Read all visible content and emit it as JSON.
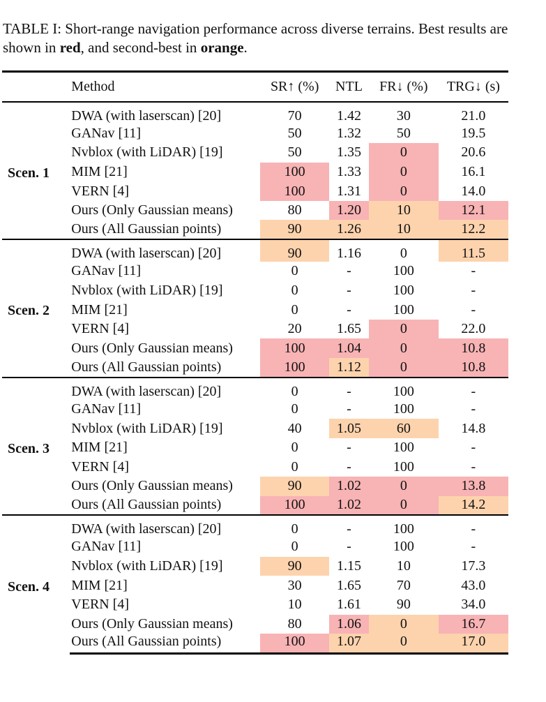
{
  "caption": {
    "prefix": "TABLE I: Short-range navigation performance across diverse terrains. Best results are shown in ",
    "best_word": "red",
    "middle": ", and second-best in ",
    "second_word": "orange",
    "suffix": "."
  },
  "colors": {
    "best": "#f8b3b5",
    "second": "#fdd3ad"
  },
  "headers": {
    "scenario": "",
    "method": "Method",
    "sr": "SR↑ (%)",
    "ntl": "NTL",
    "fr": "FR↓ (%)",
    "trg": "TRG↓ (s)"
  },
  "groups": [
    {
      "label": "Scen. 1",
      "rows": [
        {
          "method": "DWA (with laserscan) [20]",
          "sr": "70",
          "ntl": "1.42",
          "fr": "30",
          "trg": "21.0"
        },
        {
          "method": "GANav [11]",
          "sr": "50",
          "ntl": "1.32",
          "fr": "50",
          "trg": "19.5"
        },
        {
          "method": "Nvblox (with LiDAR) [19]",
          "sr": "50",
          "ntl": "1.35",
          "fr": "0",
          "trg": "20.6",
          "hl": {
            "fr": "best"
          }
        },
        {
          "method": "MIM [21]",
          "sr": "100",
          "ntl": "1.33",
          "fr": "0",
          "trg": "16.1",
          "hl": {
            "sr": "best",
            "fr": "best"
          }
        },
        {
          "method": "VERN [4]",
          "sr": "100",
          "ntl": "1.31",
          "fr": "0",
          "trg": "14.0",
          "hl": {
            "sr": "best",
            "fr": "best"
          }
        },
        {
          "method": "Ours (Only Gaussian means)",
          "sr": "80",
          "ntl": "1.20",
          "fr": "10",
          "trg": "12.1",
          "hl": {
            "ntl": "best",
            "fr": "second",
            "trg": "best"
          }
        },
        {
          "method": "Ours (All Gaussian points)",
          "sr": "90",
          "ntl": "1.26",
          "fr": "10",
          "trg": "12.2",
          "hl": {
            "sr": "second",
            "ntl": "second",
            "fr": "second",
            "trg": "second"
          }
        }
      ]
    },
    {
      "label": "Scen. 2",
      "rows": [
        {
          "method": "DWA (with laserscan) [20]",
          "sr": "90",
          "ntl": "1.16",
          "fr": "0",
          "trg": "11.5",
          "hl": {
            "sr": "second",
            "trg": "second"
          }
        },
        {
          "method": "GANav [11]",
          "sr": "0",
          "ntl": "-",
          "fr": "100",
          "trg": "-"
        },
        {
          "method": "Nvblox (with LiDAR) [19]",
          "sr": "0",
          "ntl": "-",
          "fr": "100",
          "trg": "-"
        },
        {
          "method": "MIM [21]",
          "sr": "0",
          "ntl": "-",
          "fr": "100",
          "trg": "-"
        },
        {
          "method": "VERN [4]",
          "sr": "20",
          "ntl": "1.65",
          "fr": "0",
          "trg": "22.0",
          "hl": {
            "fr": "best"
          }
        },
        {
          "method": "Ours (Only Gaussian means)",
          "sr": "100",
          "ntl": "1.04",
          "fr": "0",
          "trg": "10.8",
          "hl": {
            "sr": "best",
            "ntl": "best",
            "fr": "best",
            "trg": "best"
          }
        },
        {
          "method": "Ours (All Gaussian points)",
          "sr": "100",
          "ntl": "1.12",
          "fr": "0",
          "trg": "10.8",
          "hl": {
            "sr": "best",
            "ntl": "second",
            "fr": "best",
            "trg": "best"
          }
        }
      ]
    },
    {
      "label": "Scen. 3",
      "rows": [
        {
          "method": "DWA (with laserscan) [20]",
          "sr": "0",
          "ntl": "-",
          "fr": "100",
          "trg": "-"
        },
        {
          "method": "GANav [11]",
          "sr": "0",
          "ntl": "-",
          "fr": "100",
          "trg": "-"
        },
        {
          "method": "Nvblox (with LiDAR) [19]",
          "sr": "40",
          "ntl": "1.05",
          "fr": "60",
          "trg": "14.8",
          "hl": {
            "ntl": "second",
            "fr": "second"
          }
        },
        {
          "method": "MIM [21]",
          "sr": "0",
          "ntl": "-",
          "fr": "100",
          "trg": "-"
        },
        {
          "method": "VERN [4]",
          "sr": "0",
          "ntl": "-",
          "fr": "100",
          "trg": "-"
        },
        {
          "method": "Ours (Only Gaussian means)",
          "sr": "90",
          "ntl": "1.02",
          "fr": "0",
          "trg": "13.8",
          "hl": {
            "sr": "second",
            "ntl": "best",
            "fr": "best",
            "trg": "best"
          }
        },
        {
          "method": "Ours (All Gaussian points)",
          "sr": "100",
          "ntl": "1.02",
          "fr": "0",
          "trg": "14.2",
          "hl": {
            "sr": "best",
            "ntl": "best",
            "fr": "best",
            "trg": "second"
          }
        }
      ]
    },
    {
      "label": "Scen. 4",
      "rows": [
        {
          "method": "DWA (with laserscan) [20]",
          "sr": "0",
          "ntl": "-",
          "fr": "100",
          "trg": "-"
        },
        {
          "method": "GANav [11]",
          "sr": "0",
          "ntl": "-",
          "fr": "100",
          "trg": "-"
        },
        {
          "method": "Nvblox (with LiDAR) [19]",
          "sr": "90",
          "ntl": "1.15",
          "fr": "10",
          "trg": "17.3",
          "hl": {
            "sr": "second"
          }
        },
        {
          "method": "MIM [21]",
          "sr": "30",
          "ntl": "1.65",
          "fr": "70",
          "trg": "43.0"
        },
        {
          "method": "VERN [4]",
          "sr": "10",
          "ntl": "1.61",
          "fr": "90",
          "trg": "34.0"
        },
        {
          "method": "Ours (Only Gaussian means)",
          "sr": "80",
          "ntl": "1.06",
          "fr": "0",
          "trg": "16.7",
          "hl": {
            "ntl": "best",
            "fr": "second",
            "trg": "best"
          }
        },
        {
          "method": "Ours (All Gaussian points)",
          "sr": "100",
          "ntl": "1.07",
          "fr": "0",
          "trg": "17.0",
          "hl": {
            "sr": "best",
            "ntl": "second",
            "fr": "second",
            "trg": "second"
          }
        }
      ]
    }
  ]
}
